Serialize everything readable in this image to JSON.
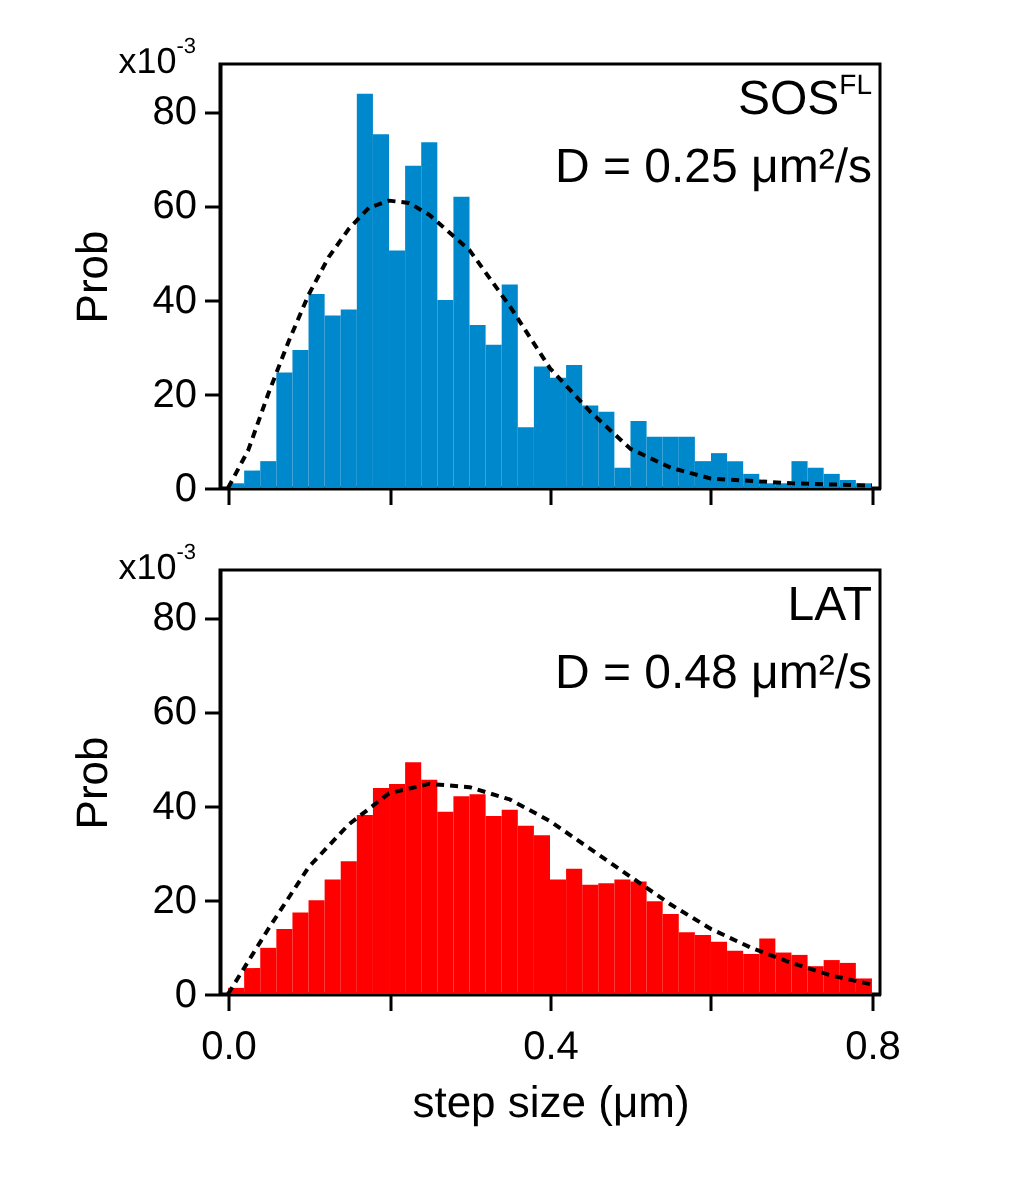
{
  "chart_data": [
    {
      "type": "histogram",
      "ylabel": "Prob",
      "annotations": [
        "x10$^{-3}$",
        "SOS$^{FL}$",
        "D = 0.25 μm²/s"
      ],
      "tick_labels": "y",
      "xlim": [
        -0.01,
        0.81
      ],
      "ylim": [
        0,
        90
      ],
      "yticks": [
        0,
        20,
        40,
        60,
        80
      ],
      "xticks": [
        0,
        0.2,
        0.4,
        0.6,
        0.8
      ],
      "bins": [
        0,
        0.02,
        0.04,
        0.06,
        0.08,
        0.1,
        0.12,
        0.14,
        0.16,
        0.18,
        0.2,
        0.22,
        0.24,
        0.26,
        0.28,
        0.3,
        0.32,
        0.34,
        0.36,
        0.38,
        0.4,
        0.42,
        0.44,
        0.46,
        0.48,
        0.5,
        0.52,
        0.54,
        0.56,
        0.58,
        0.6,
        0.62,
        0.64,
        0.66,
        0.68,
        0.7,
        0.72,
        0.74,
        0.76,
        0.78,
        0.8
      ],
      "series": [
        {
          "type": "histogram",
          "color": "#0088cc",
          "values": [
            1,
            3.7,
            5.7,
            24.5,
            29.3,
            41.2,
            36.6,
            37.9,
            83.7,
            75.1,
            50.4,
            68.4,
            73.4,
            39.9,
            61.8,
            34.6,
            30.4,
            43.2,
            12.9,
            25.8,
            23.4,
            26.1,
            17.5,
            16.2,
            4.3,
            14.2,
            10.9,
            10.9,
            10.9,
            5.7,
            7.4,
            5.7,
            3,
            1,
            1,
            5.7,
            4.3,
            3,
            1.7,
            1
          ]
        },
        {
          "type": "line",
          "line_style": "dashed",
          "color": "#000000",
          "x": [
            0,
            0.025,
            0.05,
            0.075,
            0.1,
            0.125,
            0.15,
            0.175,
            0.2,
            0.225,
            0.25,
            0.3,
            0.35,
            0.4,
            0.45,
            0.5,
            0.55,
            0.6,
            0.7,
            0.8
          ],
          "values": [
            0,
            8,
            20,
            31,
            41,
            49,
            55,
            59.5,
            61,
            60.5,
            58,
            50.5,
            38.6,
            25.4,
            16.2,
            8.3,
            4.3,
            2,
            1,
            0.5
          ]
        }
      ]
    },
    {
      "type": "histogram",
      "ylabel": "Prob",
      "xlabel": "step size (μm)",
      "annotations": [
        "x10$^{-3}$",
        "LAT",
        "D = 0.48 μm²/s"
      ],
      "xlim": [
        -0.01,
        0.81
      ],
      "ylim": [
        0,
        90
      ],
      "yticks": [
        0,
        20,
        40,
        60,
        80
      ],
      "xticks": [
        {
          "value": 0,
          "label": "0.0"
        },
        {
          "value": 0.2,
          "label": null
        },
        {
          "value": 0.4,
          "label": "0.4"
        },
        {
          "value": 0.6,
          "label": null
        },
        {
          "value": 0.8,
          "label": "0.8"
        }
      ],
      "bins": [
        0,
        0.02,
        0.04,
        0.06,
        0.08,
        0.1,
        0.12,
        0.14,
        0.16,
        0.18,
        0.2,
        0.22,
        0.24,
        0.26,
        0.28,
        0.3,
        0.32,
        0.34,
        0.36,
        0.38,
        0.4,
        0.42,
        0.44,
        0.46,
        0.48,
        0.5,
        0.52,
        0.54,
        0.56,
        0.58,
        0.6,
        0.62,
        0.64,
        0.66,
        0.68,
        0.7,
        0.72,
        0.74,
        0.76,
        0.78,
        0.8
      ],
      "series": [
        {
          "type": "histogram",
          "color": "#ff0000",
          "values": [
            1.3,
            5.5,
            9.8,
            13.8,
            17.3,
            19.9,
            24.3,
            28.2,
            38,
            43.7,
            44.6,
            49.2,
            45.5,
            38.7,
            42,
            42.4,
            37.8,
            39.1,
            35.7,
            33.7,
            24.3,
            26.6,
            23.2,
            23.5,
            24.3,
            23.9,
            19.7,
            17,
            13.1,
            12.5,
            11.1,
            9.2,
            8.5,
            11.8,
            8.8,
            8.3,
            5.9,
            7.2,
            6.6,
            3.3
          ]
        },
        {
          "type": "line",
          "line_style": "dashed",
          "color": "#000000",
          "x": [
            0,
            0.05,
            0.1,
            0.15,
            0.2,
            0.25,
            0.3,
            0.35,
            0.4,
            0.45,
            0.5,
            0.55,
            0.6,
            0.65,
            0.7,
            0.75,
            0.8
          ],
          "values": [
            0,
            13.8,
            26.9,
            36,
            42.6,
            44.6,
            43.9,
            41.3,
            36.7,
            30.8,
            24.9,
            19,
            13.8,
            9.8,
            6.6,
            3.9,
            2
          ]
        }
      ]
    }
  ]
}
